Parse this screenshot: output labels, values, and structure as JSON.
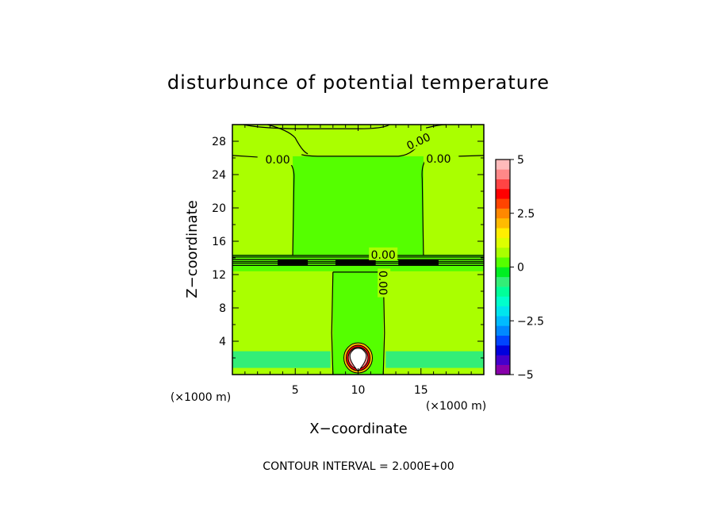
{
  "chart_data": {
    "type": "heatmap",
    "title": "disturbunce of potential temperature",
    "xlabel": "X−coordinate",
    "ylabel": "Z−coordinate",
    "x_unit": "(×1000 m)",
    "y_unit": "(×1000 m)",
    "xlim": [
      0,
      20
    ],
    "ylim": [
      0,
      30
    ],
    "x_ticks": [
      5,
      10,
      15
    ],
    "y_ticks": [
      4,
      8,
      12,
      16,
      20,
      24,
      28
    ],
    "contour_interval_text": "CONTOUR INTERVAL = 2.000E+00",
    "contour_labels": [
      {
        "text": "0.00",
        "x": 3.6,
        "z": 25.8
      },
      {
        "text": "0.00",
        "x": 14.8,
        "z": 28.0
      },
      {
        "text": "0.00",
        "x": 16.4,
        "z": 25.9
      },
      {
        "text": "0.00",
        "x": 12.0,
        "z": 14.4
      },
      {
        "text": "0.00",
        "x": 12.0,
        "z": 11.0
      }
    ],
    "regions": [
      {
        "name": "background",
        "value": 0.3,
        "x": [
          0,
          20
        ],
        "z": [
          0,
          30
        ]
      },
      {
        "name": "upper-left-column",
        "value": 0.7,
        "x": [
          0,
          4.8
        ],
        "z": [
          14.4,
          26.2
        ]
      },
      {
        "name": "upper-right-column",
        "value": 0.7,
        "x": [
          15.2,
          20
        ],
        "z": [
          14.4,
          26.2
        ]
      },
      {
        "name": "top-band",
        "value": 0.7,
        "x": [
          0,
          20
        ],
        "z": [
          26.2,
          30
        ]
      },
      {
        "name": "lower-left",
        "value": 0.7,
        "x": [
          0,
          8
        ],
        "z": [
          0,
          12.4
        ]
      },
      {
        "name": "lower-right",
        "value": 0.7,
        "x": [
          12,
          20
        ],
        "z": [
          0,
          12.4
        ]
      },
      {
        "name": "near-surface-left",
        "value": -0.7,
        "x": [
          0,
          7.8
        ],
        "z": [
          0.8,
          2.8
        ]
      },
      {
        "name": "near-surface-right",
        "value": -0.7,
        "x": [
          12.2,
          20
        ],
        "z": [
          0.8,
          2.8
        ]
      }
    ],
    "warm_bubble": {
      "x": 10,
      "z": 1.9,
      "value_min": 2,
      "value_max": 5
    },
    "colorbar": {
      "min": -5,
      "max": 5,
      "tick_labels": [
        "5",
        "2.5",
        "0",
        "−2.5",
        "−5"
      ],
      "tick_values": [
        5,
        2.5,
        0,
        -2.5,
        -5
      ],
      "colors": [
        "#8800aa",
        "#4400cc",
        "#0000dd",
        "#0044ff",
        "#0088ff",
        "#00bbff",
        "#00e5ee",
        "#00ffcc",
        "#00ff99",
        "#33ee77",
        "#00ee22",
        "#55ff00",
        "#aaff00",
        "#ddff00",
        "#ffee00",
        "#ffbb00",
        "#ff8800",
        "#ff4400",
        "#ff0000",
        "#ff4444",
        "#ff8888",
        "#ffbbbb"
      ]
    }
  }
}
